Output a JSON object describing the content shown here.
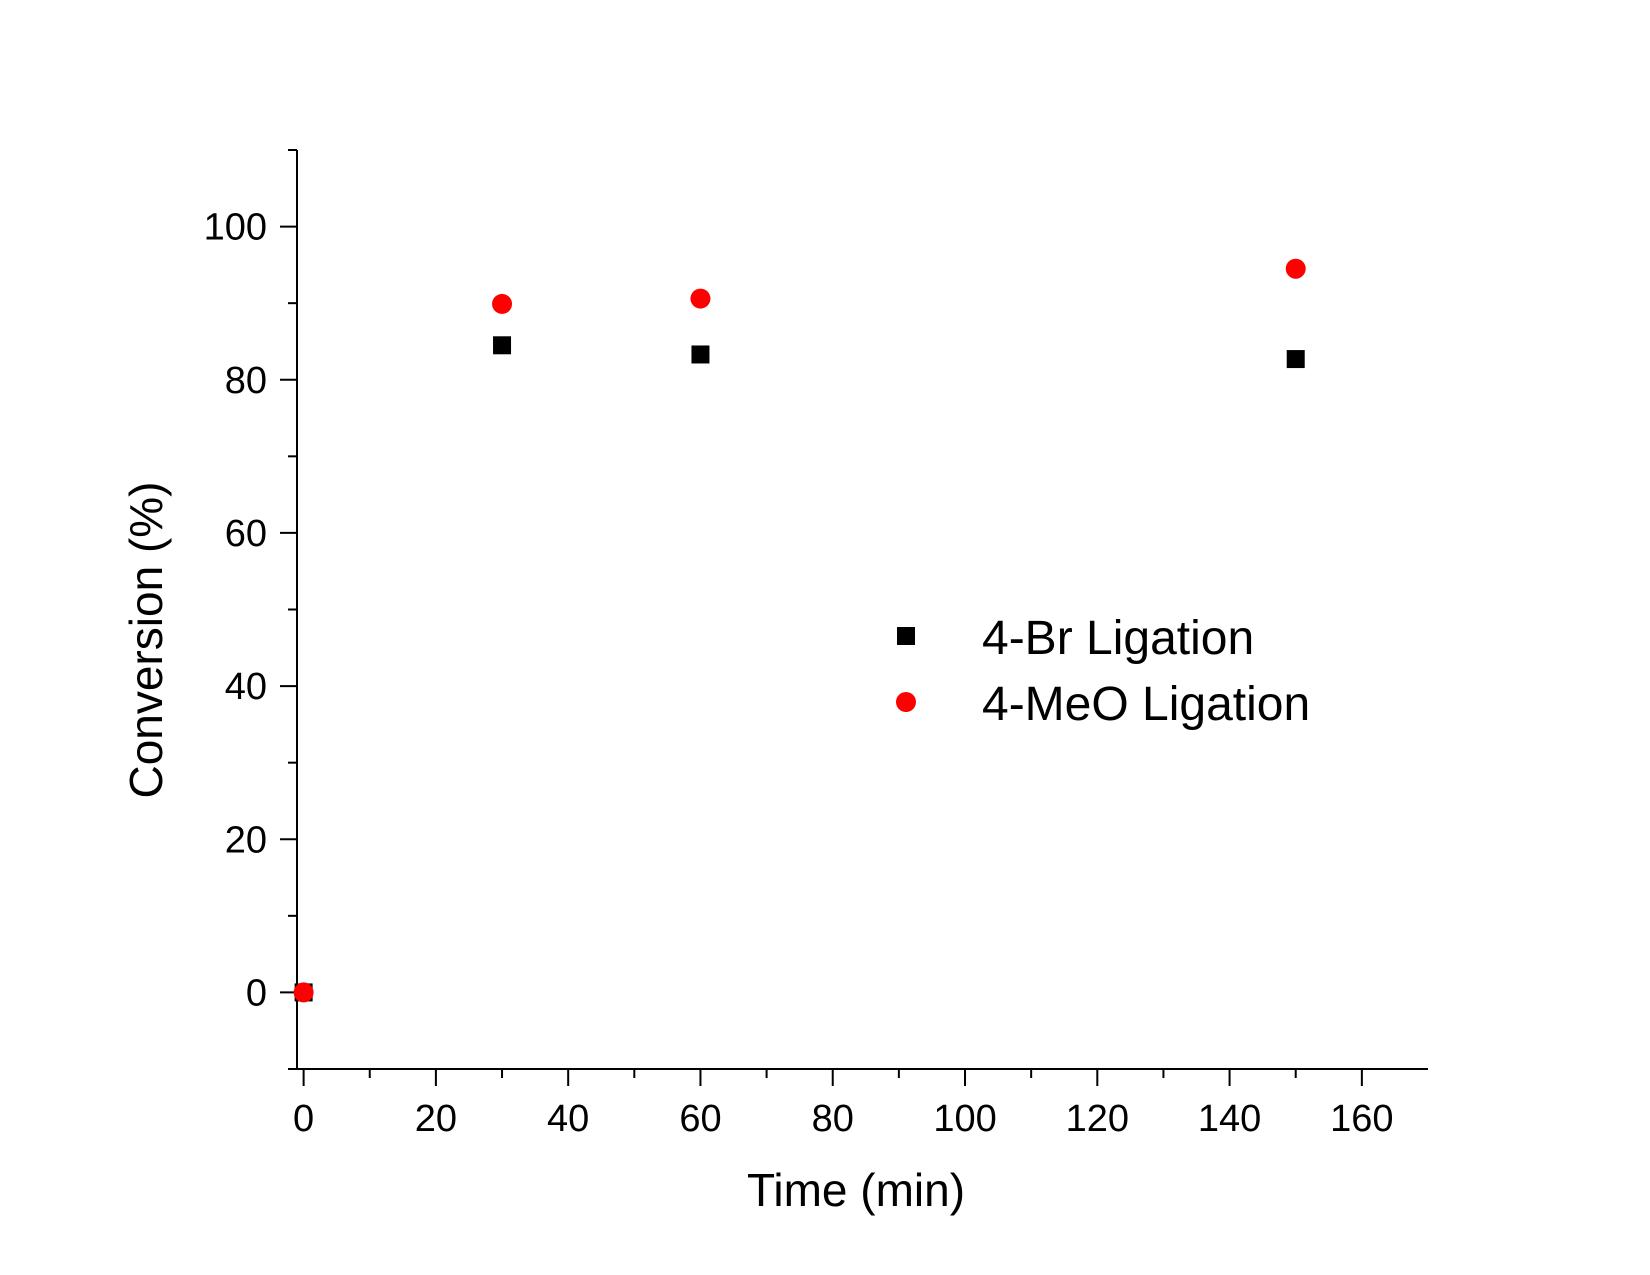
{
  "chart_data": {
    "type": "scatter",
    "xlabel": "Time (min)",
    "ylabel": "Conversion (%)",
    "xlim": [
      -1,
      170
    ],
    "ylim": [
      -10,
      110
    ],
    "x_ticks": [
      0,
      20,
      40,
      60,
      80,
      100,
      120,
      140,
      160
    ],
    "x_tick_labels": [
      "0",
      "20",
      "40",
      "60",
      "80",
      "100",
      "120",
      "140",
      "160"
    ],
    "y_ticks": [
      0,
      20,
      40,
      60,
      80,
      100
    ],
    "y_tick_labels": [
      "0",
      "20",
      "40",
      "60",
      "80",
      "100"
    ],
    "grid": false,
    "legend_position": "right-center",
    "series": [
      {
        "name": "4-Br Ligation",
        "marker": "square",
        "color": "#000000",
        "x": [
          0,
          30,
          60,
          150
        ],
        "y": [
          0,
          84.5,
          83.3,
          82.7
        ]
      },
      {
        "name": "4-MeO Ligation",
        "marker": "circle",
        "color": "#ff0000",
        "x": [
          0,
          30,
          60,
          150
        ],
        "y": [
          0,
          89.9,
          90.6,
          94.5
        ]
      }
    ]
  }
}
